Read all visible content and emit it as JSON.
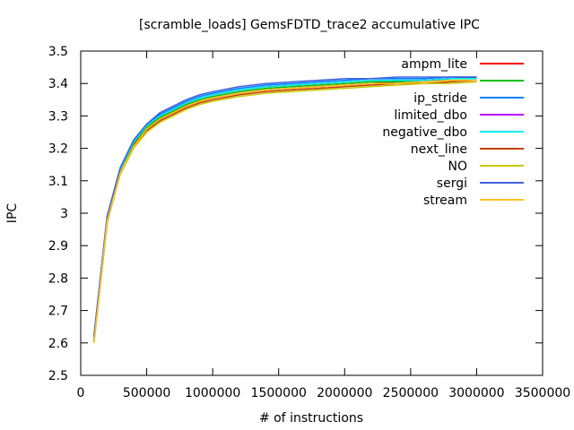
{
  "chart_data": {
    "type": "line",
    "title": "[scramble_loads] GemsFDTD_trace2 accumulative IPC",
    "xlabel": "# of instructions",
    "ylabel": "IPC",
    "xlim": [
      0,
      3500000
    ],
    "ylim": [
      2.5,
      3.5
    ],
    "x_ticks": [
      0,
      500000,
      1000000,
      1500000,
      2000000,
      2500000,
      3000000,
      3500000
    ],
    "y_ticks": [
      2.5,
      2.6,
      2.7,
      2.8,
      2.9,
      3.0,
      3.1,
      3.2,
      3.3,
      3.4,
      3.5
    ],
    "x_tick_labels": [
      "0",
      "500000",
      "1000000",
      "1500000",
      "2000000",
      "2500000",
      "3000000",
      "3500000"
    ],
    "y_tick_labels": [
      "2.5",
      "2.6",
      "2.7",
      "2.8",
      "2.9",
      "3",
      "3.1",
      "3.2",
      "3.3",
      "3.4",
      "3.5"
    ],
    "grid": false,
    "legend_position": "top-right",
    "x": [
      100000,
      200000,
      300000,
      400000,
      500000,
      600000,
      700000,
      800000,
      900000,
      1000000,
      1200000,
      1400000,
      1600000,
      1800000,
      2000000,
      2200000,
      2400000,
      2600000,
      2800000,
      3000000
    ],
    "series": [
      {
        "name": "ampm_lite",
        "color": "#ff0000",
        "values": [
          2.6,
          2.97,
          3.13,
          3.21,
          3.26,
          3.29,
          3.31,
          3.33,
          3.345,
          3.355,
          3.37,
          3.38,
          3.385,
          3.39,
          3.395,
          3.4,
          3.405,
          3.41,
          3.415,
          3.42
        ]
      },
      {
        "name": "",
        "color": "#00c000",
        "values": [
          2.61,
          2.98,
          3.13,
          3.215,
          3.265,
          3.295,
          3.315,
          3.335,
          3.35,
          3.36,
          3.375,
          3.385,
          3.39,
          3.395,
          3.4,
          3.405,
          3.405,
          3.41,
          3.41,
          3.41
        ]
      },
      {
        "name": "ip_stride",
        "color": "#0080ff",
        "values": [
          2.62,
          2.99,
          3.14,
          3.225,
          3.275,
          3.305,
          3.325,
          3.345,
          3.36,
          3.37,
          3.385,
          3.395,
          3.4,
          3.405,
          3.41,
          3.415,
          3.415,
          3.415,
          3.42,
          3.42
        ]
      },
      {
        "name": "limited_dbo",
        "color": "#c000ff",
        "values": [
          2.61,
          2.98,
          3.135,
          3.22,
          3.27,
          3.3,
          3.32,
          3.34,
          3.355,
          3.365,
          3.38,
          3.39,
          3.395,
          3.4,
          3.405,
          3.41,
          3.41,
          3.41,
          3.415,
          3.415
        ]
      },
      {
        "name": "negative_dbo",
        "color": "#00eeee",
        "values": [
          2.61,
          2.985,
          3.135,
          3.22,
          3.27,
          3.3,
          3.32,
          3.34,
          3.355,
          3.365,
          3.38,
          3.39,
          3.395,
          3.4,
          3.405,
          3.41,
          3.41,
          3.41,
          3.415,
          3.415
        ]
      },
      {
        "name": "next_line",
        "color": "#c04000",
        "values": [
          2.6,
          2.97,
          3.125,
          3.205,
          3.255,
          3.285,
          3.305,
          3.325,
          3.34,
          3.35,
          3.365,
          3.375,
          3.38,
          3.385,
          3.39,
          3.395,
          3.4,
          3.4,
          3.405,
          3.41
        ]
      },
      {
        "name": "NO",
        "color": "#c8c800",
        "values": [
          2.6,
          2.97,
          3.12,
          3.2,
          3.25,
          3.28,
          3.3,
          3.32,
          3.335,
          3.345,
          3.36,
          3.37,
          3.375,
          3.38,
          3.385,
          3.39,
          3.395,
          3.4,
          3.4,
          3.405
        ]
      },
      {
        "name": "sergi",
        "color": "#4060e0",
        "values": [
          2.62,
          2.99,
          3.14,
          3.225,
          3.275,
          3.31,
          3.33,
          3.35,
          3.365,
          3.375,
          3.39,
          3.4,
          3.405,
          3.41,
          3.415,
          3.415,
          3.42,
          3.42,
          3.42,
          3.42
        ]
      },
      {
        "name": "stream",
        "color": "#ffc020",
        "values": [
          2.6,
          2.975,
          3.125,
          3.205,
          3.26,
          3.29,
          3.31,
          3.33,
          3.345,
          3.355,
          3.37,
          3.38,
          3.385,
          3.39,
          3.395,
          3.4,
          3.4,
          3.405,
          3.41,
          3.41
        ]
      }
    ]
  }
}
